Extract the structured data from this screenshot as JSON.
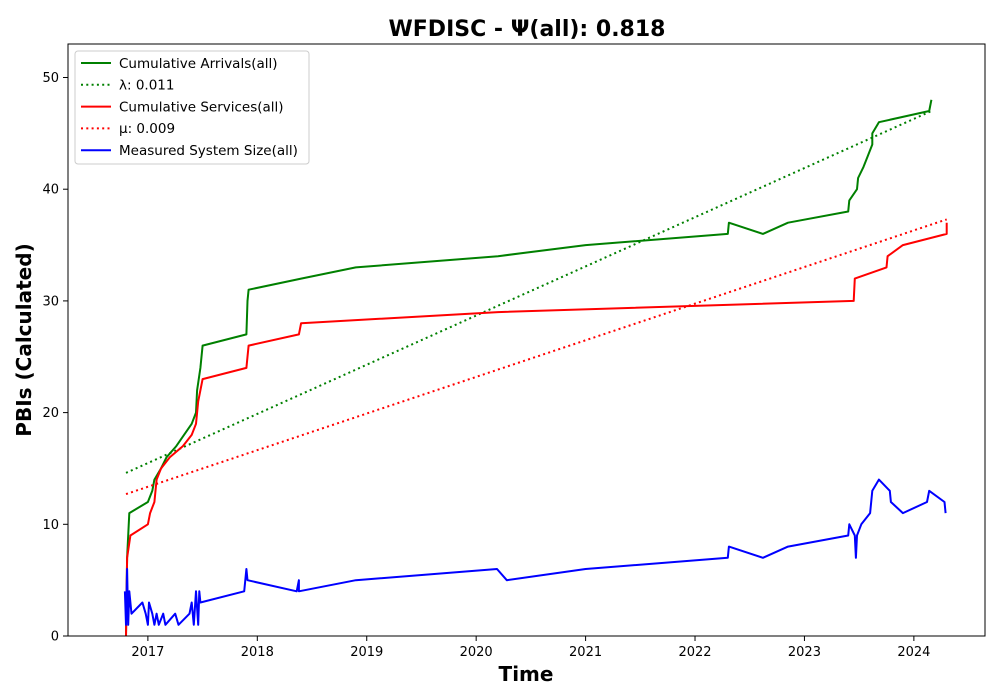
{
  "chart_data": {
    "type": "line",
    "title": "WFDISC -  Ψ(all): 0.818",
    "xlabel": "Time",
    "ylabel": "PBIs (Calculated)",
    "xlim": [
      2016.27,
      2024.65
    ],
    "ylim": [
      0,
      53
    ],
    "x_ticks": [
      2017,
      2018,
      2019,
      2020,
      2021,
      2022,
      2023,
      2024
    ],
    "x_tick_labels": [
      "2017",
      "2018",
      "2019",
      "2020",
      "2021",
      "2022",
      "2023",
      "2024"
    ],
    "y_ticks": [
      0,
      10,
      20,
      30,
      40,
      50
    ],
    "y_tick_labels": [
      "0",
      "10",
      "20",
      "30",
      "40",
      "50"
    ],
    "grid": false,
    "legend_position": "top-left",
    "series": [
      {
        "name": "Cumulative Arrivals(all)",
        "color": "#008000",
        "style": "solid",
        "points": [
          [
            2016.8,
            0
          ],
          [
            2016.81,
            7
          ],
          [
            2016.83,
            11
          ],
          [
            2017.0,
            12
          ],
          [
            2017.04,
            13
          ],
          [
            2017.06,
            14
          ],
          [
            2017.12,
            15
          ],
          [
            2017.17,
            16
          ],
          [
            2017.26,
            17
          ],
          [
            2017.33,
            18
          ],
          [
            2017.4,
            19
          ],
          [
            2017.44,
            20
          ],
          [
            2017.45,
            22
          ],
          [
            2017.48,
            24
          ],
          [
            2017.5,
            26
          ],
          [
            2017.9,
            27
          ],
          [
            2017.91,
            30
          ],
          [
            2017.92,
            31
          ],
          [
            2018.4,
            32
          ],
          [
            2018.9,
            33
          ],
          [
            2020.2,
            34
          ],
          [
            2021.0,
            35
          ],
          [
            2022.3,
            36
          ],
          [
            2022.31,
            37
          ],
          [
            2022.62,
            36
          ],
          [
            2022.85,
            37
          ],
          [
            2023.4,
            38
          ],
          [
            2023.41,
            39
          ],
          [
            2023.48,
            40
          ],
          [
            2023.49,
            41
          ],
          [
            2023.54,
            42
          ],
          [
            2023.58,
            43
          ],
          [
            2023.62,
            44
          ],
          [
            2023.62,
            45
          ],
          [
            2023.68,
            46
          ],
          [
            2024.14,
            47
          ],
          [
            2024.16,
            48
          ]
        ]
      },
      {
        "name": "λ: 0.011",
        "color": "#008000",
        "style": "dotted",
        "points": [
          [
            2016.8,
            14.6
          ],
          [
            2024.16,
            47.0
          ]
        ]
      },
      {
        "name": "Cumulative Services(all)",
        "color": "#ff0000",
        "style": "solid",
        "points": [
          [
            2016.8,
            0
          ],
          [
            2016.81,
            7
          ],
          [
            2016.84,
            9
          ],
          [
            2017.0,
            10
          ],
          [
            2017.02,
            11
          ],
          [
            2017.06,
            12
          ],
          [
            2017.08,
            14
          ],
          [
            2017.12,
            15
          ],
          [
            2017.2,
            16
          ],
          [
            2017.32,
            17
          ],
          [
            2017.4,
            18
          ],
          [
            2017.44,
            19
          ],
          [
            2017.46,
            21
          ],
          [
            2017.5,
            23
          ],
          [
            2017.9,
            24
          ],
          [
            2017.92,
            26
          ],
          [
            2018.38,
            27
          ],
          [
            2018.4,
            28
          ],
          [
            2020.2,
            29
          ],
          [
            2023.45,
            30
          ],
          [
            2023.46,
            32
          ],
          [
            2023.75,
            33
          ],
          [
            2023.76,
            34
          ],
          [
            2023.9,
            35
          ],
          [
            2024.3,
            36
          ],
          [
            2024.3,
            37
          ]
        ]
      },
      {
        "name": "μ: 0.009",
        "color": "#ff0000",
        "style": "dotted",
        "points": [
          [
            2016.8,
            12.7
          ],
          [
            2024.3,
            37.3
          ]
        ]
      },
      {
        "name": "Measured System Size(all)",
        "color": "#0000ff",
        "style": "solid",
        "points": [
          [
            2016.79,
            4
          ],
          [
            2016.8,
            1
          ],
          [
            2016.81,
            6
          ],
          [
            2016.82,
            1
          ],
          [
            2016.83,
            4
          ],
          [
            2016.85,
            2
          ],
          [
            2016.95,
            3
          ],
          [
            2016.98,
            2
          ],
          [
            2017.0,
            1
          ],
          [
            2017.01,
            3
          ],
          [
            2017.04,
            2
          ],
          [
            2017.06,
            1
          ],
          [
            2017.08,
            2
          ],
          [
            2017.1,
            1
          ],
          [
            2017.14,
            2
          ],
          [
            2017.16,
            1
          ],
          [
            2017.25,
            2
          ],
          [
            2017.28,
            1
          ],
          [
            2017.38,
            2
          ],
          [
            2017.4,
            3
          ],
          [
            2017.42,
            1
          ],
          [
            2017.44,
            4
          ],
          [
            2017.46,
            1
          ],
          [
            2017.47,
            4
          ],
          [
            2017.48,
            3
          ],
          [
            2017.88,
            4
          ],
          [
            2017.9,
            6
          ],
          [
            2017.91,
            5
          ],
          [
            2018.36,
            4
          ],
          [
            2018.38,
            5
          ],
          [
            2018.38,
            4
          ],
          [
            2018.9,
            5
          ],
          [
            2020.19,
            6
          ],
          [
            2020.28,
            5
          ],
          [
            2021.0,
            6
          ],
          [
            2022.3,
            7
          ],
          [
            2022.31,
            8
          ],
          [
            2022.62,
            7
          ],
          [
            2022.85,
            8
          ],
          [
            2023.4,
            9
          ],
          [
            2023.41,
            10
          ],
          [
            2023.46,
            9
          ],
          [
            2023.47,
            7
          ],
          [
            2023.48,
            9
          ],
          [
            2023.52,
            10
          ],
          [
            2023.6,
            11
          ],
          [
            2023.62,
            13
          ],
          [
            2023.68,
            14
          ],
          [
            2023.78,
            13
          ],
          [
            2023.79,
            12
          ],
          [
            2023.9,
            11
          ],
          [
            2024.12,
            12
          ],
          [
            2024.14,
            13
          ],
          [
            2024.28,
            12
          ],
          [
            2024.29,
            11
          ]
        ]
      }
    ]
  }
}
